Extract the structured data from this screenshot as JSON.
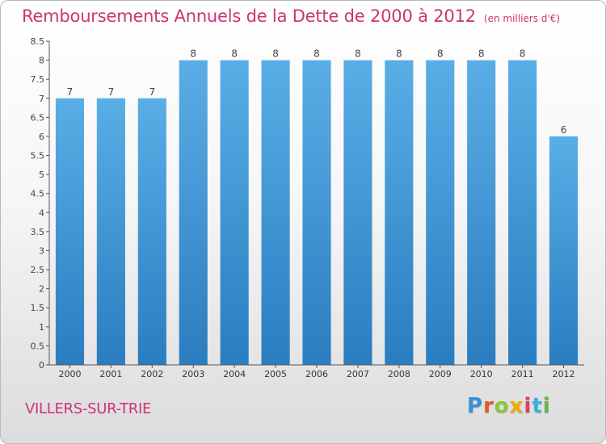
{
  "header": {
    "title": "Remboursements Annuels de la Dette de 2000 à 2012",
    "unit": "(en milliers d'€)"
  },
  "footer": {
    "town": "VILLERS-SUR-TRIE",
    "logo_text": "Proxiti"
  },
  "colors": {
    "title": "#cc3377",
    "bar_top": "#5aaee6",
    "bar_bottom": "#2a7dc0",
    "axis": "#555555"
  },
  "chart_data": {
    "type": "bar",
    "title": "Remboursements Annuels de la Dette de 2000 à 2012",
    "subtitle": "(en milliers d'€)",
    "xlabel": "",
    "ylabel": "",
    "categories": [
      "2000",
      "2001",
      "2002",
      "2003",
      "2004",
      "2005",
      "2006",
      "2007",
      "2008",
      "2009",
      "2010",
      "2011",
      "2012"
    ],
    "values": [
      7,
      7,
      7,
      8,
      8,
      8,
      8,
      8,
      8,
      8,
      8,
      8,
      6
    ],
    "data_labels": [
      "7",
      "7",
      "7",
      "8",
      "8",
      "8",
      "8",
      "8",
      "8",
      "8",
      "8",
      "8",
      "6"
    ],
    "ylim": [
      0,
      8.5
    ],
    "yticks": [
      0,
      0.5,
      1,
      1.5,
      2,
      2.5,
      3,
      3.5,
      4,
      4.5,
      5,
      5.5,
      6,
      6.5,
      7,
      7.5,
      8,
      8.5
    ],
    "ytick_labels": [
      "0",
      "0.5",
      "1",
      "1.5",
      "2",
      "2.5",
      "3",
      "3.5",
      "4",
      "4.5",
      "5",
      "5.5",
      "6",
      "6.5",
      "7",
      "7.5",
      "8",
      "8.5"
    ],
    "grid": false,
    "legend": "none"
  }
}
